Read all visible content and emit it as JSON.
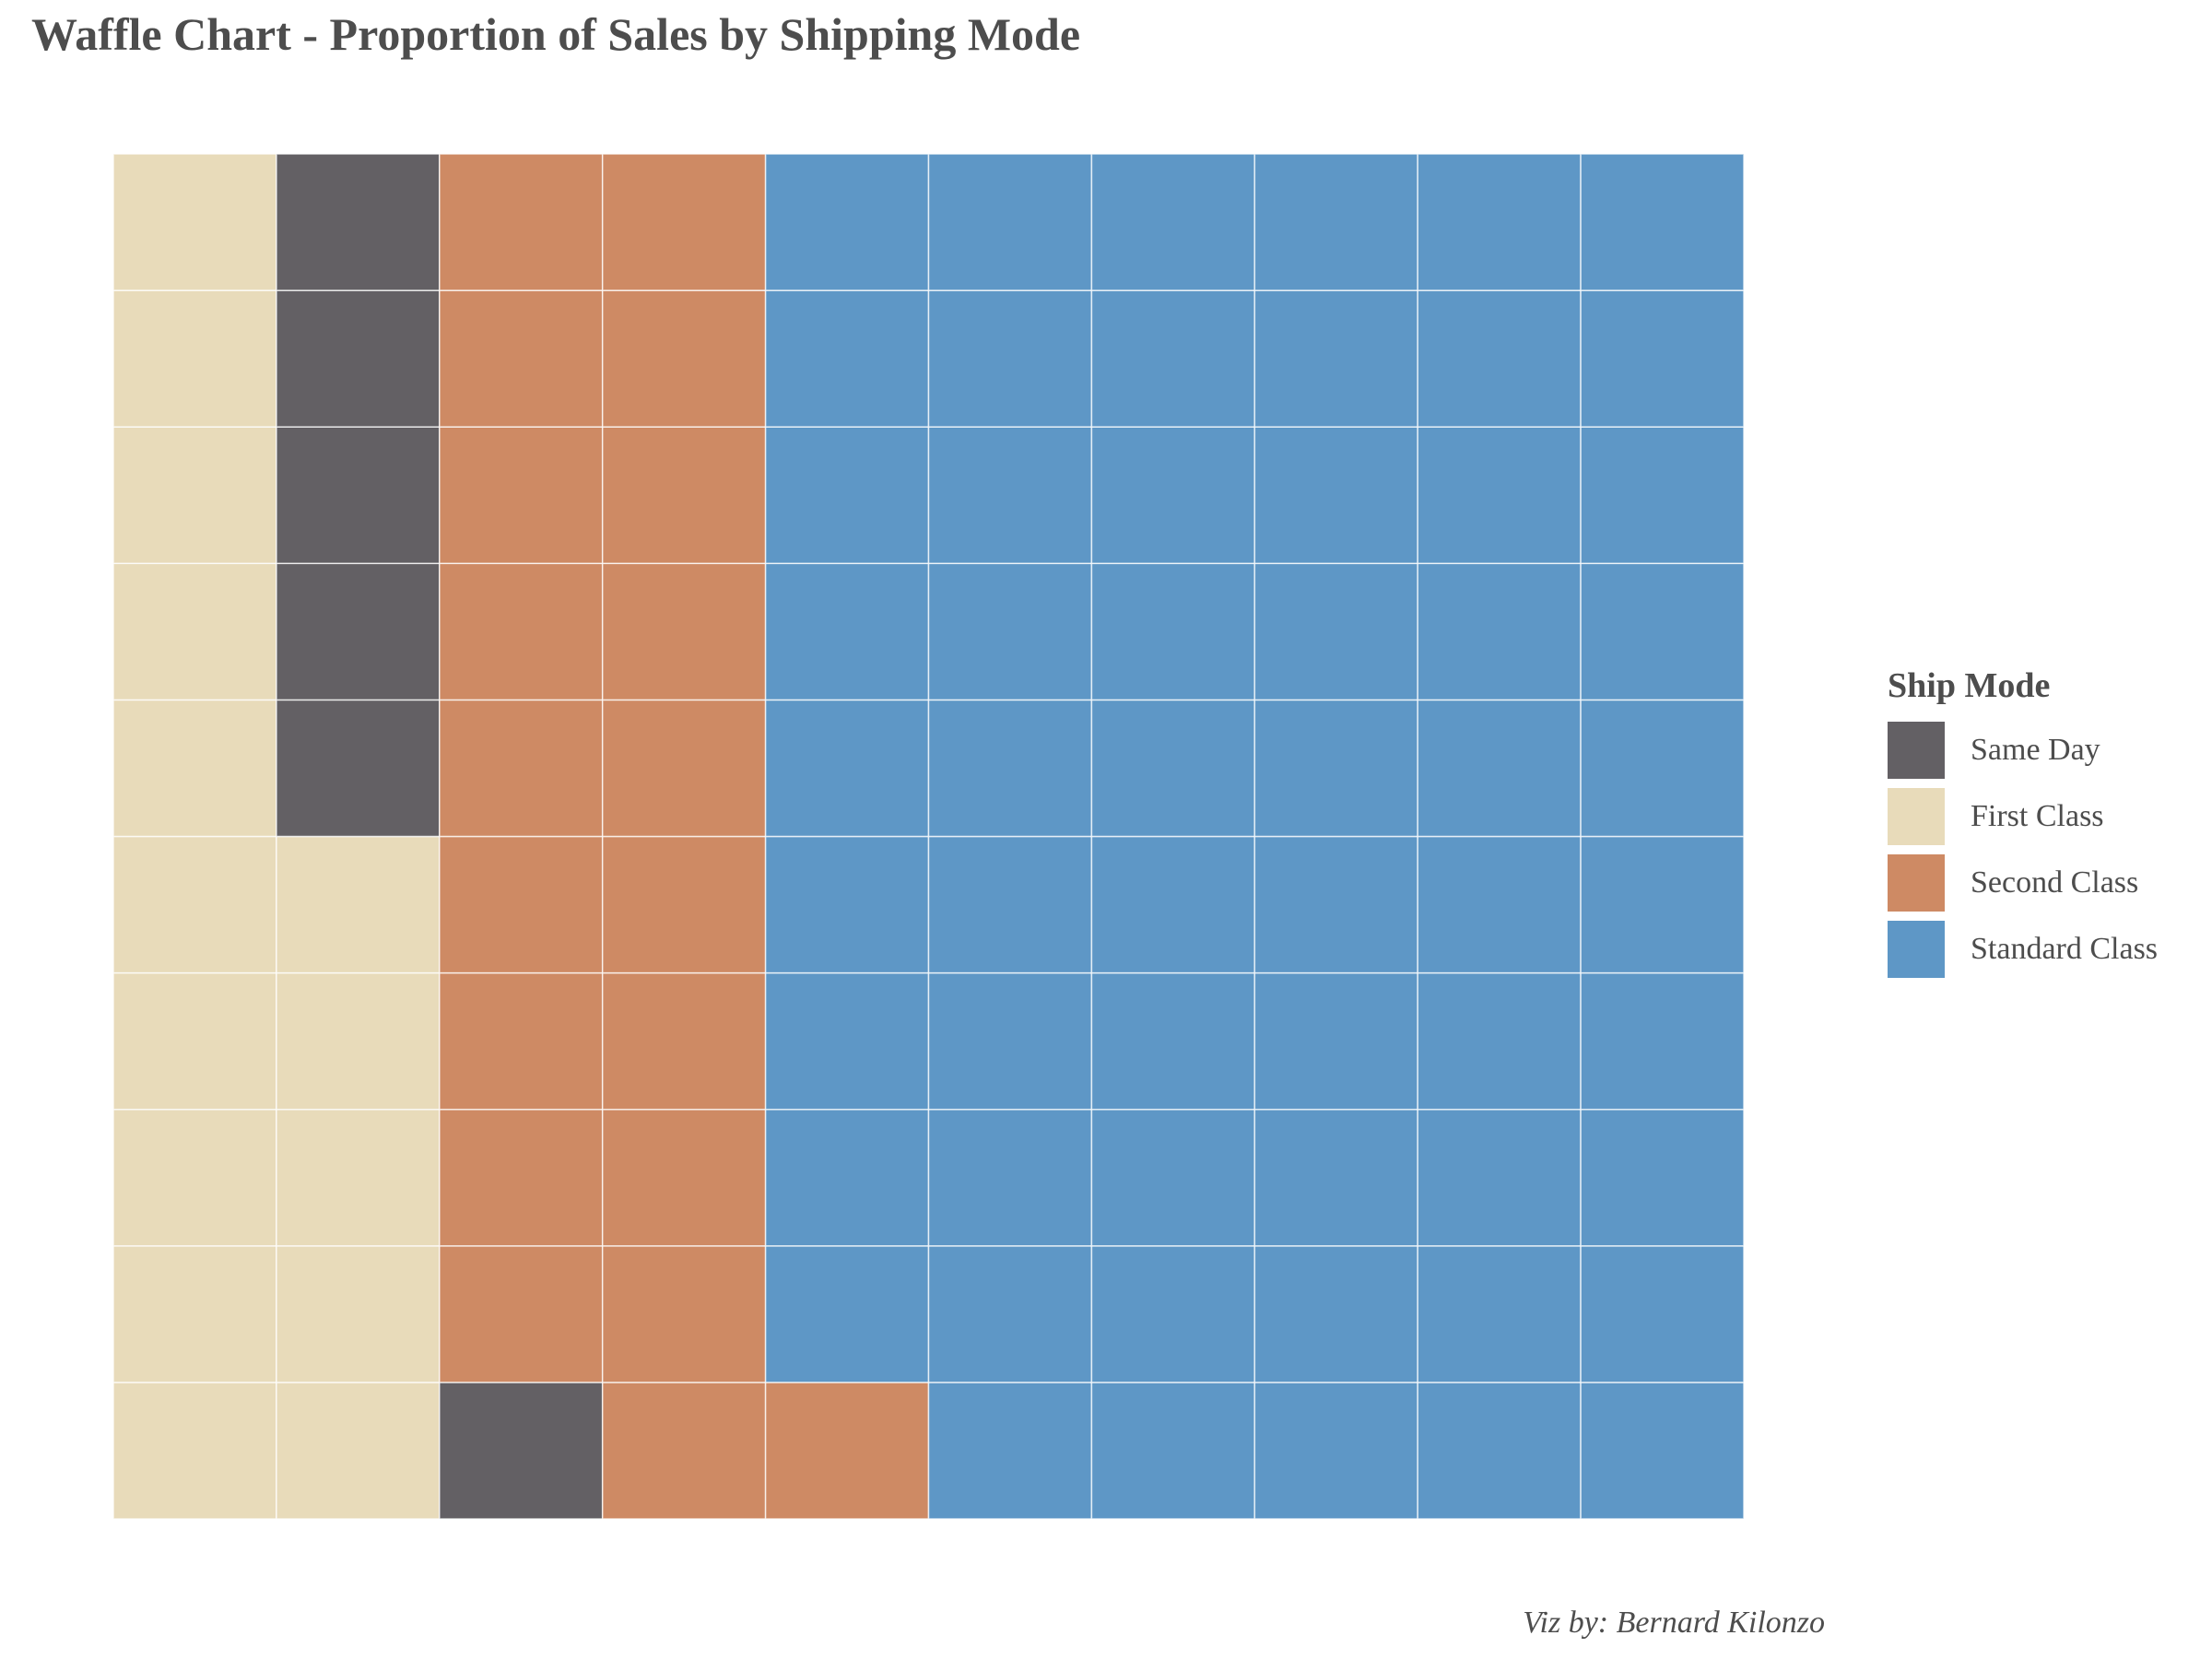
{
  "chart_data": {
    "type": "waffle",
    "title": "Waffle Chart - Proportion of Sales by Shipping Mode",
    "caption": "Viz by: Bernard Kilonzo",
    "grid": {
      "rows": 10,
      "cols": 10
    },
    "legend": {
      "title": "Ship Mode",
      "position": "right",
      "items": [
        {
          "name": "Same Day",
          "color": "#636064"
        },
        {
          "name": "First Class",
          "color": "#e8dbba"
        },
        {
          "name": "Second Class",
          "color": "#ce8a64"
        },
        {
          "name": "Standard Class",
          "color": "#5e97c6"
        }
      ]
    },
    "series": [
      {
        "name": "Same Day",
        "value": 6
      },
      {
        "name": "First Class",
        "value": 15
      },
      {
        "name": "Second Class",
        "value": 20
      },
      {
        "name": "Standard Class",
        "value": 59
      }
    ],
    "cell_order": "column-major, starting bottom-left",
    "cells": [
      "First Class",
      "First Class",
      "First Class",
      "First Class",
      "First Class",
      "First Class",
      "First Class",
      "First Class",
      "First Class",
      "First Class",
      "First Class",
      "First Class",
      "First Class",
      "First Class",
      "First Class",
      "Same Day",
      "Same Day",
      "Same Day",
      "Same Day",
      "Same Day",
      "Same Day",
      "Second Class",
      "Second Class",
      "Second Class",
      "Second Class",
      "Second Class",
      "Second Class",
      "Second Class",
      "Second Class",
      "Second Class",
      "Second Class",
      "Second Class",
      "Second Class",
      "Second Class",
      "Second Class",
      "Second Class",
      "Second Class",
      "Second Class",
      "Second Class",
      "Second Class",
      "Second Class",
      "Standard Class",
      "Standard Class",
      "Standard Class",
      "Standard Class",
      "Standard Class",
      "Standard Class",
      "Standard Class",
      "Standard Class",
      "Standard Class",
      "Standard Class",
      "Standard Class",
      "Standard Class",
      "Standard Class",
      "Standard Class",
      "Standard Class",
      "Standard Class",
      "Standard Class",
      "Standard Class",
      "Standard Class",
      "Standard Class",
      "Standard Class",
      "Standard Class",
      "Standard Class",
      "Standard Class",
      "Standard Class",
      "Standard Class",
      "Standard Class",
      "Standard Class",
      "Standard Class",
      "Standard Class",
      "Standard Class",
      "Standard Class",
      "Standard Class",
      "Standard Class",
      "Standard Class",
      "Standard Class",
      "Standard Class",
      "Standard Class",
      "Standard Class",
      "Standard Class",
      "Standard Class",
      "Standard Class",
      "Standard Class",
      "Standard Class",
      "Standard Class",
      "Standard Class",
      "Standard Class",
      "Standard Class",
      "Standard Class",
      "Standard Class",
      "Standard Class",
      "Standard Class",
      "Standard Class",
      "Standard Class",
      "Standard Class",
      "Standard Class",
      "Standard Class",
      "Standard Class",
      "Standard Class"
    ]
  }
}
